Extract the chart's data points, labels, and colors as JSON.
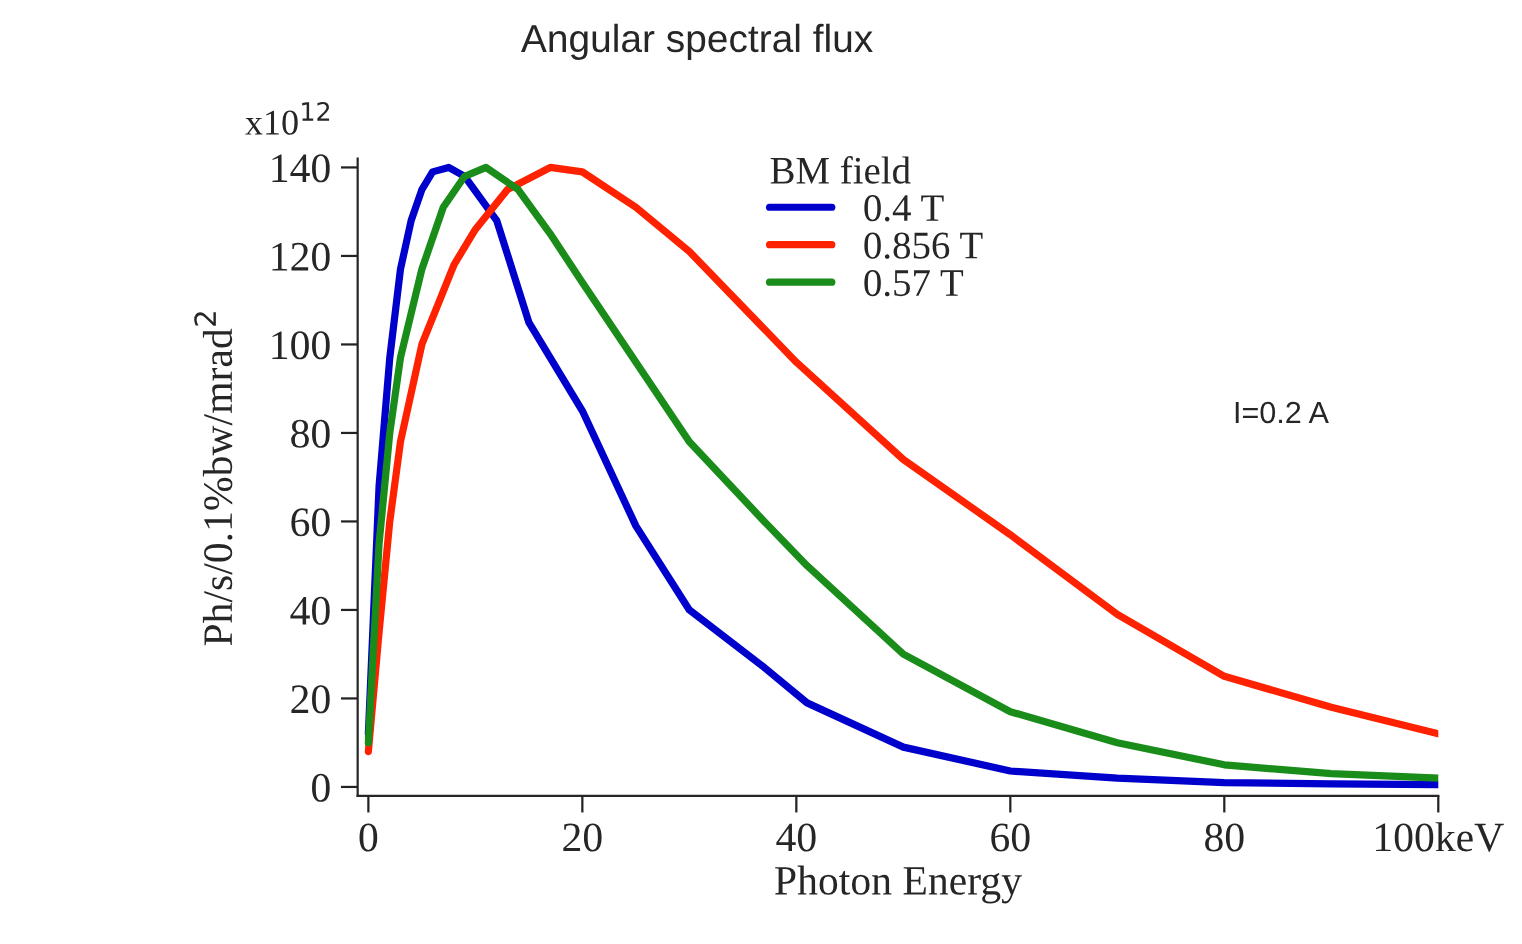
{
  "chart_data": {
    "type": "line",
    "title": "Angular spectral flux",
    "xlabel": "Photon Energy",
    "ylabel": "Ph/s/0.1%bw/mrad$^{2}$",
    "legend_title": "BM field",
    "annotations": [
      "I=0.2 A",
      "x10$^{12}$"
    ],
    "xlim": [
      -1,
      100
    ],
    "ylim": [
      -2,
      142
    ],
    "xticks": [
      0,
      20,
      40,
      60,
      80,
      {
        "value": 100,
        "label": "100keV"
      }
    ],
    "yticks": [
      0,
      20,
      40,
      60,
      80,
      100,
      120,
      140
    ],
    "grid": false,
    "legend": "top",
    "marker": "none",
    "line_style": "solid",
    "series": [
      {
        "name": "0.4 T",
        "color": "#0000cc",
        "x": [
          0,
          0.5,
          1,
          2,
          3,
          4,
          5,
          6,
          7.5,
          9,
          12,
          15,
          20,
          25,
          30,
          37,
          41,
          50,
          60,
          70,
          80,
          90,
          100
        ],
        "values": [
          12,
          40,
          68,
          97,
          117,
          128,
          135,
          139,
          140,
          138,
          128,
          105,
          85,
          59,
          40,
          27,
          19,
          9,
          3.6,
          2,
          1,
          0.7,
          0.5
        ]
      },
      {
        "name": "0.856 T",
        "color": "#ff2200",
        "x": [
          0,
          1,
          2,
          3,
          5,
          8,
          10,
          13,
          17,
          20,
          25,
          30,
          40,
          50,
          60,
          70,
          80,
          90,
          100
        ],
        "values": [
          8,
          35,
          60,
          78,
          100,
          118,
          126,
          135,
          140,
          139,
          131,
          121,
          96,
          74,
          57,
          39,
          25,
          18,
          12
        ]
      },
      {
        "name": "0.57 T",
        "color": "#1a8c1a",
        "x": [
          0,
          1,
          2,
          3,
          5,
          7,
          9,
          11,
          14,
          17,
          20,
          30,
          37,
          41,
          50,
          60,
          70,
          80,
          90,
          100
        ],
        "values": [
          10,
          55,
          80,
          97,
          117,
          131,
          138,
          140,
          135,
          125,
          114,
          78,
          60,
          50,
          30,
          17,
          10,
          5,
          3,
          2
        ]
      }
    ]
  }
}
